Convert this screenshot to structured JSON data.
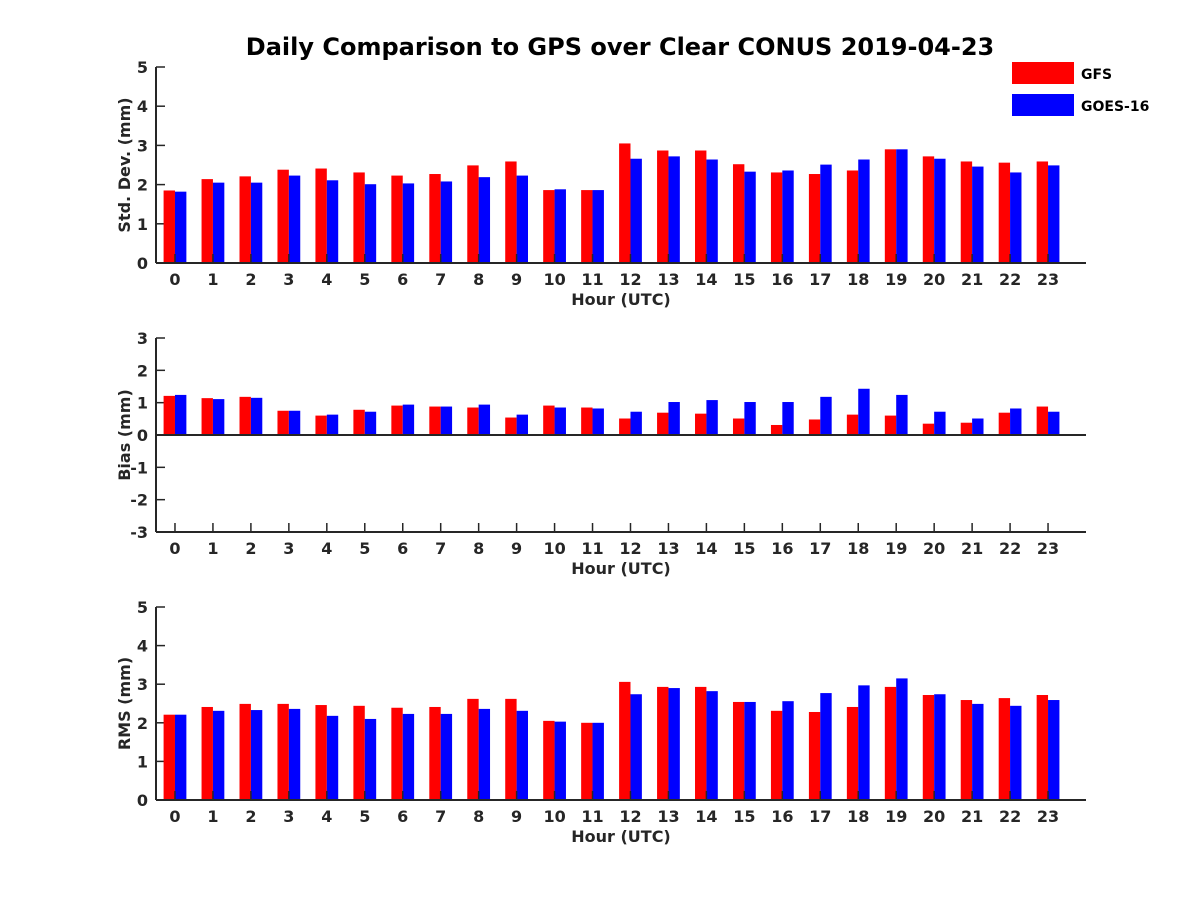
{
  "title": "Daily Comparison to GPS over Clear CONUS 2019-04-23",
  "legend": [
    {
      "name": "GFS",
      "color": "#ff0000"
    },
    {
      "name": "GOES-16",
      "color": "#0000ff"
    }
  ],
  "chart_data": [
    {
      "type": "bar",
      "title": "Daily Comparison to GPS over Clear CONUS 2019-04-23",
      "xlabel": "Hour (UTC)",
      "ylabel": "Std. Dev. (mm)",
      "ylim": [
        0,
        5
      ],
      "yticks": [
        "0",
        "1",
        "2",
        "3",
        "4",
        "5"
      ],
      "categories": [
        "0",
        "1",
        "2",
        "3",
        "4",
        "5",
        "6",
        "7",
        "8",
        "9",
        "10",
        "11",
        "12",
        "13",
        "14",
        "15",
        "16",
        "17",
        "18",
        "19",
        "20",
        "21",
        "22",
        "23"
      ],
      "series": [
        {
          "name": "GFS",
          "color": "#ff0000",
          "values": [
            1.85,
            2.14,
            2.21,
            2.38,
            2.41,
            2.31,
            2.23,
            2.27,
            2.49,
            2.59,
            1.86,
            1.86,
            3.05,
            2.87,
            2.87,
            2.52,
            2.31,
            2.27,
            2.36,
            2.9,
            2.72,
            2.59,
            2.56,
            2.59
          ]
        },
        {
          "name": "GOES-16",
          "color": "#0000ff",
          "values": [
            1.82,
            2.05,
            2.05,
            2.23,
            2.11,
            2.01,
            2.03,
            2.08,
            2.19,
            2.23,
            1.88,
            1.86,
            2.66,
            2.72,
            2.64,
            2.33,
            2.36,
            2.51,
            2.64,
            2.9,
            2.66,
            2.46,
            2.31,
            2.49
          ]
        }
      ]
    },
    {
      "type": "bar",
      "xlabel": "Hour (UTC)",
      "ylabel": "Bias (mm)",
      "ylim": [
        -3,
        3
      ],
      "yticks": [
        "-3",
        "-2",
        "-1",
        "0",
        "1",
        "2",
        "3"
      ],
      "categories": [
        "0",
        "1",
        "2",
        "3",
        "4",
        "5",
        "6",
        "7",
        "8",
        "9",
        "10",
        "11",
        "12",
        "13",
        "14",
        "15",
        "16",
        "17",
        "18",
        "19",
        "20",
        "21",
        "22",
        "23"
      ],
      "series": [
        {
          "name": "GFS",
          "color": "#ff0000",
          "values": [
            1.21,
            1.14,
            1.18,
            0.75,
            0.6,
            0.78,
            0.91,
            0.88,
            0.85,
            0.54,
            0.91,
            0.85,
            0.51,
            0.69,
            0.66,
            0.51,
            0.31,
            0.48,
            0.63,
            0.6,
            0.35,
            0.38,
            0.69,
            0.88
          ]
        },
        {
          "name": "GOES-16",
          "color": "#0000ff",
          "values": [
            1.24,
            1.11,
            1.15,
            0.75,
            0.63,
            0.72,
            0.94,
            0.88,
            0.94,
            0.63,
            0.85,
            0.82,
            0.72,
            1.02,
            1.08,
            1.02,
            1.02,
            1.18,
            1.43,
            1.24,
            0.72,
            0.51,
            0.82,
            0.72
          ]
        }
      ]
    },
    {
      "type": "bar",
      "xlabel": "Hour (UTC)",
      "ylabel": "RMS (mm)",
      "ylim": [
        0,
        5
      ],
      "yticks": [
        "0",
        "1",
        "2",
        "3",
        "4",
        "5"
      ],
      "categories": [
        "0",
        "1",
        "2",
        "3",
        "4",
        "5",
        "6",
        "7",
        "8",
        "9",
        "10",
        "11",
        "12",
        "13",
        "14",
        "15",
        "16",
        "17",
        "18",
        "19",
        "20",
        "21",
        "22",
        "23"
      ],
      "series": [
        {
          "name": "GFS",
          "color": "#ff0000",
          "values": [
            2.21,
            2.41,
            2.49,
            2.49,
            2.46,
            2.44,
            2.39,
            2.41,
            2.62,
            2.62,
            2.05,
            2.0,
            3.06,
            2.93,
            2.93,
            2.54,
            2.31,
            2.28,
            2.41,
            2.93,
            2.72,
            2.59,
            2.64,
            2.72
          ]
        },
        {
          "name": "GOES-16",
          "color": "#0000ff",
          "values": [
            2.21,
            2.31,
            2.33,
            2.36,
            2.18,
            2.1,
            2.23,
            2.23,
            2.36,
            2.31,
            2.03,
            2.0,
            2.74,
            2.9,
            2.82,
            2.54,
            2.56,
            2.77,
            2.97,
            3.15,
            2.74,
            2.49,
            2.44,
            2.59
          ]
        }
      ]
    }
  ]
}
